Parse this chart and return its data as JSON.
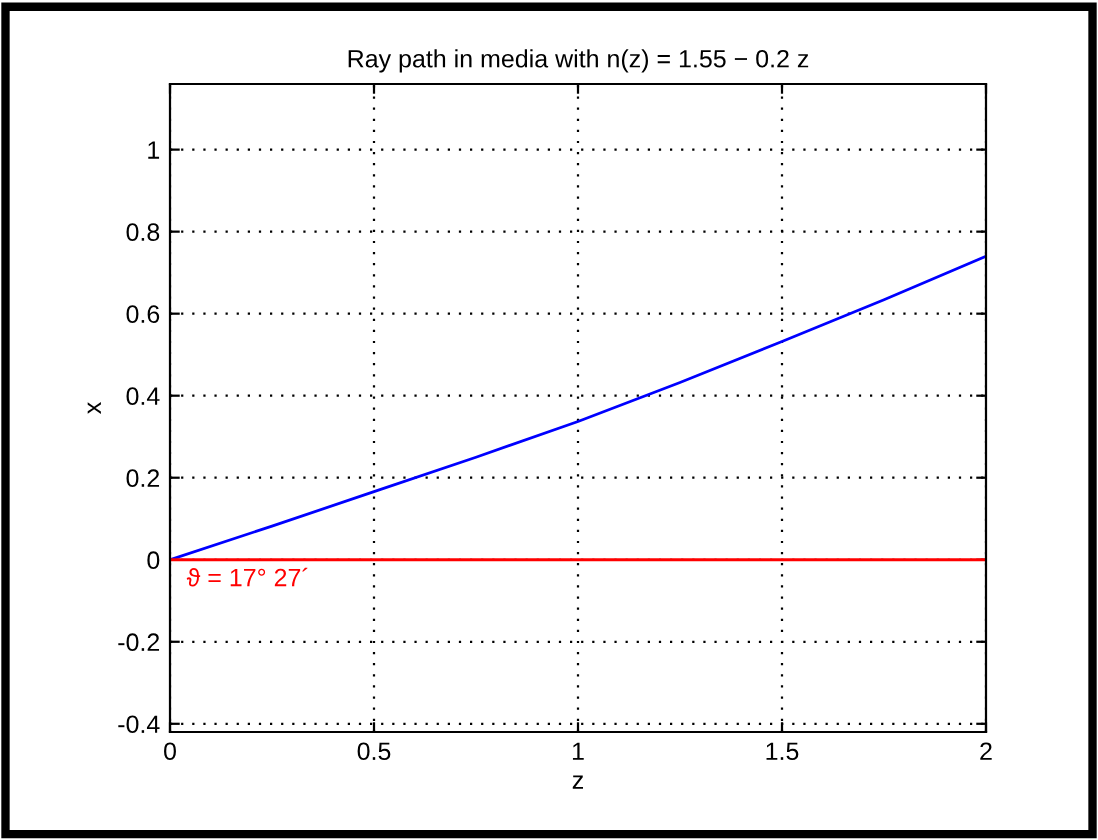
{
  "chart_data": {
    "type": "line",
    "title": "Ray path in media with n(z) = 1.55 − 0.2 z",
    "xlabel": "z",
    "ylabel": "x",
    "x": [
      0,
      0.25,
      0.5,
      0.75,
      1,
      1.25,
      1.5,
      1.75,
      2
    ],
    "series": [
      {
        "color": "#0000ff",
        "values": [
          0,
          0.082,
          0.166,
          0.25,
          0.337,
          0.432,
          0.532,
          0.634,
          0.74
        ]
      }
    ],
    "ref_lines": [
      {
        "axis": "y",
        "value": 0,
        "color": "#ff0000"
      }
    ],
    "annotations": [
      {
        "text": "ϑ = 17° 27´",
        "x": 0,
        "y": 0
      }
    ],
    "xlim": [
      0,
      2
    ],
    "xticks": [
      0,
      0.5,
      1,
      1.5,
      2
    ],
    "ylim": [
      -0.42,
      1.16
    ],
    "yticks": [
      -0.4,
      -0.2,
      0,
      0.2,
      0.4,
      0.6,
      0.8,
      1
    ],
    "grid": true
  }
}
